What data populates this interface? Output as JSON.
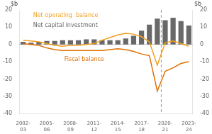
{
  "chart_data": {
    "type": "bar",
    "ylabel": "$b",
    "y2label": "$b",
    "categories": [
      "2002-\n03",
      null,
      null,
      "2005-\n06",
      null,
      null,
      "2008-\n09",
      null,
      null,
      "2011-\n12",
      null,
      null,
      "2014-\n15",
      null,
      null,
      "2017-\n18",
      null,
      null,
      "2020-\n21",
      null,
      null,
      "2023-\n24"
    ],
    "series": [
      {
        "name": "Net capital investment",
        "type": "bar",
        "color": "#696969",
        "values": [
          1.5,
          1.0,
          1.5,
          2.0,
          2.0,
          2.5,
          2.5,
          2.5,
          3.0,
          3.0,
          2.5,
          2.5,
          2.5,
          3.5,
          5.0,
          8.0,
          11.5,
          15.0,
          14.0,
          15.5,
          13.5,
          11.0
        ]
      },
      {
        "name": "Net operating  balance",
        "type": "line",
        "color": "#F4A020",
        "marker": "none",
        "line_style": "solid",
        "values": [
          2.5,
          2.0,
          1.5,
          0.5,
          -0.5,
          -1.0,
          -0.5,
          -0.5,
          0.0,
          0.5,
          2.5,
          4.0,
          5.5,
          6.5,
          6.0,
          4.5,
          1.5,
          -12.0,
          1.0,
          2.0,
          0.5,
          -1.0
        ]
      },
      {
        "name": "Fiscal balance",
        "type": "line",
        "color": "#E07000",
        "marker": "none",
        "line_style": "solid",
        "values": [
          0.5,
          0.0,
          -0.5,
          -2.0,
          -3.0,
          -3.5,
          -3.5,
          -3.5,
          -3.5,
          -3.5,
          -3.5,
          -3.0,
          -2.5,
          -3.0,
          -4.0,
          -5.5,
          -6.5,
          -27.0,
          -15.5,
          -13.5,
          -11.0,
          -10.0
        ]
      }
    ],
    "ylim": [
      -40,
      20
    ],
    "yticks": [
      -40,
      -30,
      -20,
      -10,
      0,
      10,
      20
    ],
    "y2lim": [
      -40,
      20
    ],
    "y2ticks": [
      -40,
      -30,
      -20,
      -10,
      0,
      10,
      20
    ],
    "grid": false,
    "vertical_line": {
      "x": 17.5,
      "color": "#999999",
      "line_style": "dashed"
    }
  }
}
